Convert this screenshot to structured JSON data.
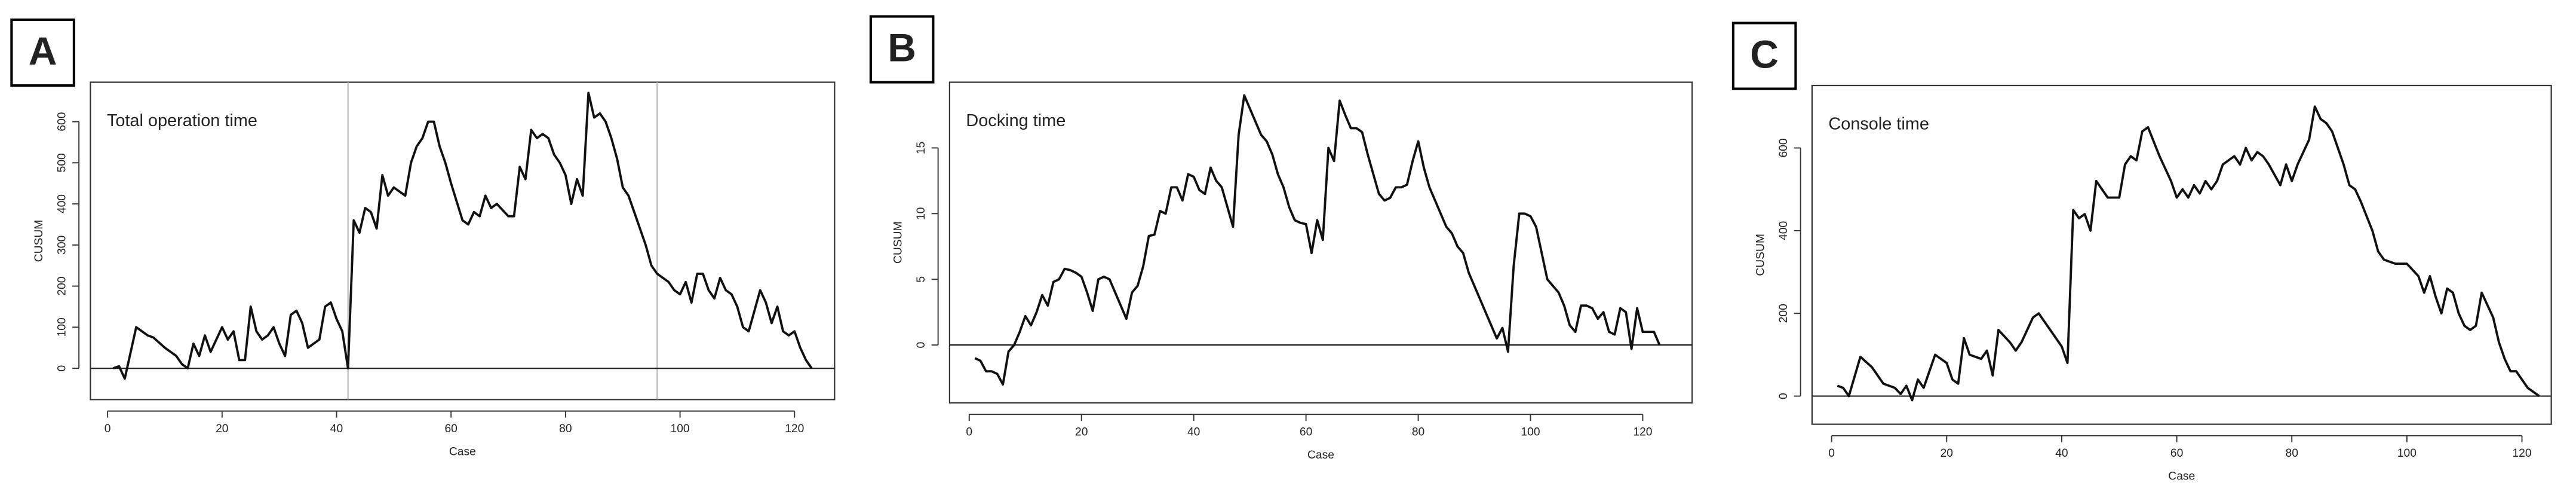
{
  "chart_data": [
    {
      "type": "line",
      "panel": "A",
      "title": "Total operation time",
      "xlabel": "Case",
      "ylabel": "CUSUM",
      "xlim": [
        -3,
        127
      ],
      "ylim": [
        -76,
        696
      ],
      "xticks": [
        0,
        20,
        40,
        60,
        80,
        100,
        120
      ],
      "yticks": [
        0,
        100,
        200,
        300,
        400,
        500,
        600
      ],
      "hline": 0,
      "vlines": [
        42,
        96
      ],
      "color": "#111111",
      "x": [
        1,
        2,
        3,
        5,
        7,
        8,
        10,
        12,
        13,
        14,
        15,
        16,
        17,
        18,
        19,
        20,
        21,
        22,
        23,
        24,
        25,
        26,
        27,
        28,
        29,
        30,
        31,
        32,
        33,
        34,
        35,
        37,
        38,
        39,
        40,
        41,
        42,
        43,
        44,
        45,
        46,
        47,
        48,
        49,
        50,
        51,
        52,
        53,
        54,
        55,
        56,
        57,
        58,
        59,
        60,
        62,
        63,
        64,
        65,
        66,
        67,
        68,
        70,
        71,
        72,
        73,
        74,
        75,
        76,
        77,
        78,
        79,
        80,
        81,
        82,
        83,
        84,
        85,
        86,
        87,
        88,
        89,
        90,
        91,
        92,
        94,
        95,
        96,
        98,
        99,
        100,
        101,
        102,
        103,
        104,
        105,
        106,
        107,
        108,
        109,
        110,
        111,
        112,
        114,
        115,
        116,
        117,
        118,
        119,
        120,
        121,
        122,
        123
      ],
      "values": [
        0,
        5,
        -25,
        100,
        80,
        75,
        50,
        30,
        10,
        0,
        60,
        30,
        80,
        40,
        70,
        100,
        70,
        90,
        20,
        20,
        150,
        90,
        70,
        80,
        100,
        60,
        30,
        130,
        140,
        110,
        50,
        70,
        150,
        160,
        120,
        90,
        0,
        360,
        330,
        390,
        380,
        340,
        470,
        420,
        440,
        430,
        420,
        500,
        540,
        560,
        600,
        600,
        540,
        500,
        450,
        360,
        350,
        380,
        370,
        420,
        390,
        400,
        370,
        370,
        490,
        460,
        580,
        560,
        570,
        560,
        520,
        500,
        470,
        400,
        460,
        420,
        670,
        610,
        620,
        600,
        560,
        510,
        440,
        420,
        380,
        300,
        250,
        230,
        210,
        190,
        180,
        210,
        160,
        230,
        230,
        190,
        170,
        220,
        190,
        180,
        150,
        100,
        90,
        190,
        160,
        110,
        150,
        90,
        80,
        90,
        50,
        20,
        0
      ]
    },
    {
      "type": "line",
      "panel": "B",
      "title": "Docking time",
      "xlabel": "Case",
      "ylabel": "CUSUM",
      "xlim": [
        -3.5,
        128.8
      ],
      "ylim": [
        -4.4,
        20
      ],
      "xticks": [
        0,
        20,
        40,
        60,
        80,
        100,
        120
      ],
      "yticks": [
        0,
        5,
        10,
        15
      ],
      "hline": 0,
      "vlines": [],
      "color": "#111111",
      "x": [
        1,
        2,
        3,
        4,
        5,
        6,
        7,
        8,
        9,
        10,
        11,
        12,
        13,
        14,
        15,
        16,
        17,
        18,
        19,
        20,
        21,
        22,
        23,
        24,
        25,
        26,
        27,
        28,
        29,
        30,
        31,
        32,
        33,
        34,
        35,
        36,
        37,
        38,
        39,
        40,
        41,
        42,
        43,
        44,
        45,
        46,
        47,
        48,
        49,
        50,
        51,
        52,
        53,
        54,
        55,
        56,
        57,
        58,
        59,
        60,
        61,
        62,
        63,
        64,
        65,
        66,
        67,
        68,
        69,
        70,
        71,
        72,
        73,
        74,
        75,
        76,
        77,
        78,
        79,
        80,
        81,
        82,
        83,
        84,
        85,
        86,
        87,
        88,
        89,
        90,
        91,
        92,
        93,
        94,
        95,
        96,
        97,
        98,
        99,
        100,
        101,
        102,
        103,
        104,
        105,
        106,
        107,
        108,
        109,
        110,
        111,
        112,
        113,
        114,
        115,
        116,
        117,
        118,
        119,
        120,
        121,
        122,
        123
      ],
      "values": [
        -1,
        -1.2,
        -2,
        -2,
        -2.2,
        -3,
        -0.5,
        0,
        1,
        2.2,
        1.5,
        2.5,
        3.8,
        3,
        4.8,
        5,
        5.8,
        5.7,
        5.5,
        5.2,
        4,
        2.6,
        5,
        5.2,
        5,
        4,
        3,
        2,
        4,
        4.5,
        6,
        8.3,
        8.4,
        10.2,
        10,
        12,
        12,
        11,
        13,
        12.8,
        11.8,
        11.5,
        13.5,
        12.5,
        12,
        10.5,
        9,
        16,
        19,
        18,
        17,
        16,
        15.5,
        14.5,
        13,
        12,
        10.5,
        9.5,
        9.3,
        9.2,
        7,
        9.5,
        8,
        15,
        14,
        18.6,
        17.5,
        16.5,
        16.5,
        16.2,
        14.5,
        13,
        11.5,
        11,
        11.2,
        12,
        12,
        12.2,
        14,
        15.5,
        13.5,
        12,
        11,
        10,
        9,
        8.5,
        7.5,
        7,
        5.5,
        4.5,
        3.5,
        2.5,
        1.5,
        0.5,
        1.3,
        -0.5,
        6,
        10,
        10,
        9.8,
        9,
        7,
        5,
        4.5,
        4,
        3,
        1.5,
        1,
        3,
        3,
        2.8,
        2,
        2.5,
        1,
        0.8,
        2.8,
        2.5,
        -0.3,
        2.8,
        1,
        1,
        1,
        0
      ]
    },
    {
      "type": "line",
      "panel": "C",
      "title": "Console time",
      "xlabel": "Case",
      "ylabel": "CUSUM",
      "xlim": [
        -3.4,
        125.1
      ],
      "ylim": [
        -68,
        751
      ],
      "xticks": [
        0,
        20,
        40,
        60,
        80,
        100,
        120
      ],
      "yticks": [
        0,
        200,
        400,
        600
      ],
      "hline": 0,
      "vlines": [],
      "color": "#111111",
      "x": [
        1,
        2,
        3,
        5,
        7,
        9,
        11,
        12,
        13,
        14,
        15,
        16,
        18,
        20,
        21,
        22,
        23,
        24,
        26,
        27,
        28,
        29,
        31,
        32,
        33,
        35,
        36,
        38,
        40,
        41,
        42,
        43,
        44,
        45,
        46,
        48,
        50,
        51,
        52,
        53,
        54,
        55,
        57,
        59,
        60,
        61,
        62,
        63,
        64,
        65,
        66,
        67,
        68,
        70,
        71,
        72,
        73,
        74,
        75,
        76,
        78,
        79,
        80,
        81,
        82,
        83,
        84,
        85,
        86,
        87,
        88,
        89,
        90,
        91,
        92,
        94,
        95,
        96,
        98,
        100,
        102,
        103,
        104,
        105,
        106,
        107,
        108,
        109,
        110,
        111,
        112,
        113,
        114,
        115,
        116,
        117,
        118,
        119,
        120,
        121,
        123
      ],
      "values": [
        25,
        20,
        0,
        95,
        70,
        30,
        20,
        5,
        25,
        -10,
        40,
        20,
        100,
        80,
        40,
        30,
        140,
        100,
        90,
        110,
        50,
        160,
        130,
        110,
        130,
        190,
        200,
        160,
        120,
        80,
        450,
        430,
        440,
        400,
        520,
        480,
        480,
        560,
        580,
        570,
        640,
        650,
        580,
        520,
        480,
        500,
        480,
        510,
        490,
        520,
        500,
        520,
        560,
        580,
        560,
        600,
        570,
        590,
        580,
        560,
        510,
        560,
        520,
        560,
        590,
        620,
        700,
        670,
        660,
        640,
        600,
        560,
        510,
        500,
        470,
        400,
        350,
        330,
        320,
        320,
        290,
        250,
        290,
        240,
        200,
        260,
        250,
        200,
        170,
        160,
        170,
        250,
        220,
        190,
        130,
        90,
        60,
        60,
        40,
        20,
        0
      ]
    }
  ]
}
